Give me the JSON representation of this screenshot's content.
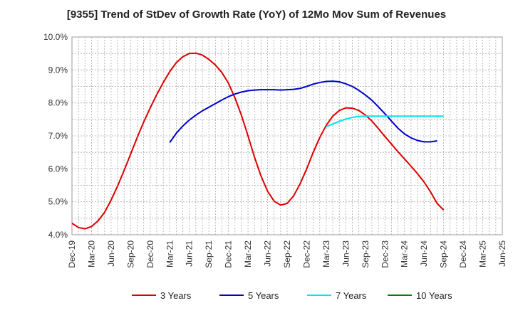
{
  "chart_data": {
    "type": "line",
    "title": "[9355]  Trend of StDev of Growth Rate (YoY) of 12Mo Mov Sum of Revenues",
    "xlabel": "",
    "ylabel": "",
    "ylim": [
      4.0,
      10.0
    ],
    "y_ticks": [
      4.0,
      5.0,
      6.0,
      7.0,
      8.0,
      9.0,
      10.0
    ],
    "y_tick_labels": [
      "4.0%",
      "5.0%",
      "6.0%",
      "7.0%",
      "8.0%",
      "9.0%",
      "10.0%"
    ],
    "x_tick_labels": [
      "Dec-19",
      "Mar-20",
      "Jun-20",
      "Sep-20",
      "Dec-20",
      "Mar-21",
      "Jun-21",
      "Sep-21",
      "Dec-21",
      "Mar-22",
      "Jun-22",
      "Sep-22",
      "Dec-22",
      "Mar-23",
      "Jun-23",
      "Sep-23",
      "Dec-23",
      "Mar-24",
      "Jun-24",
      "Sep-24",
      "Dec-24",
      "Mar-25",
      "Jun-25"
    ],
    "x_label_month_index": [
      0,
      3,
      6,
      9,
      12,
      15,
      18,
      21,
      24,
      27,
      30,
      33,
      36,
      39,
      42,
      45,
      48,
      51,
      54,
      57,
      60,
      63,
      66
    ],
    "x_month_range": [
      0,
      66
    ],
    "grid": true,
    "legend_position": "bottom",
    "series": [
      {
        "name": "3 Years",
        "color": "#dd0000",
        "start_month": 0,
        "values": [
          4.35,
          4.22,
          4.18,
          4.25,
          4.42,
          4.68,
          5.05,
          5.48,
          5.95,
          6.45,
          6.95,
          7.42,
          7.85,
          8.25,
          8.62,
          8.95,
          9.22,
          9.4,
          9.5,
          9.51,
          9.45,
          9.32,
          9.15,
          8.92,
          8.6,
          8.15,
          7.62,
          7.0,
          6.35,
          5.78,
          5.32,
          5.02,
          4.9,
          4.95,
          5.18,
          5.55,
          6.0,
          6.5,
          6.95,
          7.32,
          7.6,
          7.77,
          7.85,
          7.84,
          7.77,
          7.63,
          7.45,
          7.22,
          6.98,
          6.75,
          6.52,
          6.3,
          6.08,
          5.85,
          5.6,
          5.3,
          4.95,
          4.75
        ]
      },
      {
        "name": "5 Years",
        "color": "#0000cc",
        "start_month": 15,
        "values": [
          6.8,
          7.08,
          7.3,
          7.48,
          7.63,
          7.76,
          7.87,
          7.98,
          8.09,
          8.19,
          8.27,
          8.33,
          8.37,
          8.39,
          8.4,
          8.4,
          8.4,
          8.39,
          8.4,
          8.41,
          8.44,
          8.5,
          8.57,
          8.62,
          8.65,
          8.66,
          8.64,
          8.58,
          8.5,
          8.38,
          8.24,
          8.08,
          7.88,
          7.67,
          7.45,
          7.23,
          7.06,
          6.94,
          6.86,
          6.82,
          6.82,
          6.85
        ]
      },
      {
        "name": "7 Years",
        "color": "#00e5ee",
        "start_month": 39,
        "values": [
          7.28,
          7.36,
          7.44,
          7.51,
          7.56,
          7.59,
          7.6,
          7.6,
          7.6,
          7.6,
          7.6,
          7.6,
          7.6,
          7.6,
          7.6,
          7.6,
          7.6,
          7.6,
          7.6
        ]
      },
      {
        "name": "10 Years",
        "color": "#008000",
        "start_month": 0,
        "values": []
      }
    ]
  }
}
